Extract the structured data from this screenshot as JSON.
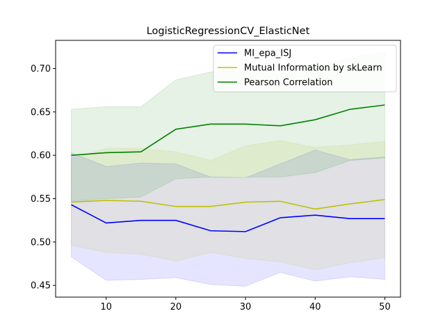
{
  "chart_data": {
    "type": "line",
    "title": "LogisticRegressionCV_ElasticNet",
    "xlabel": "",
    "ylabel": "",
    "x": [
      5,
      10,
      15,
      20,
      25,
      30,
      35,
      40,
      45,
      50
    ],
    "xlim": [
      2.75,
      52.25
    ],
    "ylim": [
      0.4365,
      0.7325
    ],
    "xticks": [
      10,
      20,
      30,
      40,
      50
    ],
    "yticks": [
      0.45,
      0.5,
      0.55,
      0.6,
      0.65,
      0.7
    ],
    "ytick_labels": [
      "0.45",
      "0.50",
      "0.55",
      "0.60",
      "0.65",
      "0.70"
    ],
    "grid": false,
    "legend_position": "top-right",
    "series": [
      {
        "name": "MI_epa_ISJ",
        "color": "#0000ff",
        "band_color": "#0000ff",
        "values": [
          0.543,
          0.522,
          0.525,
          0.525,
          0.513,
          0.512,
          0.528,
          0.531,
          0.527,
          0.527
        ],
        "upper": [
          0.603,
          0.587,
          0.591,
          0.59,
          0.575,
          0.574,
          0.59,
          0.606,
          0.595,
          0.598
        ],
        "lower": [
          0.483,
          0.456,
          0.457,
          0.459,
          0.451,
          0.449,
          0.465,
          0.455,
          0.46,
          0.457
        ]
      },
      {
        "name": "Mutual Information by skLearn",
        "color": "#bfbf00",
        "band_color": "#bfbf00",
        "values": [
          0.546,
          0.548,
          0.547,
          0.541,
          0.541,
          0.546,
          0.547,
          0.538,
          0.544,
          0.549
        ],
        "upper": [
          0.596,
          0.608,
          0.608,
          0.604,
          0.594,
          0.611,
          0.617,
          0.609,
          0.612,
          0.616
        ],
        "lower": [
          0.496,
          0.488,
          0.486,
          0.478,
          0.488,
          0.481,
          0.477,
          0.468,
          0.476,
          0.482
        ]
      },
      {
        "name": "Pearson Correlation",
        "color": "#008000",
        "band_color": "#008000",
        "values": [
          0.6,
          0.603,
          0.604,
          0.63,
          0.636,
          0.636,
          0.634,
          0.641,
          0.653,
          0.658
        ],
        "upper": [
          0.653,
          0.656,
          0.656,
          0.687,
          0.696,
          0.698,
          0.693,
          0.702,
          0.712,
          0.719
        ],
        "lower": [
          0.547,
          0.55,
          0.552,
          0.573,
          0.575,
          0.575,
          0.575,
          0.58,
          0.594,
          0.597
        ]
      }
    ]
  }
}
